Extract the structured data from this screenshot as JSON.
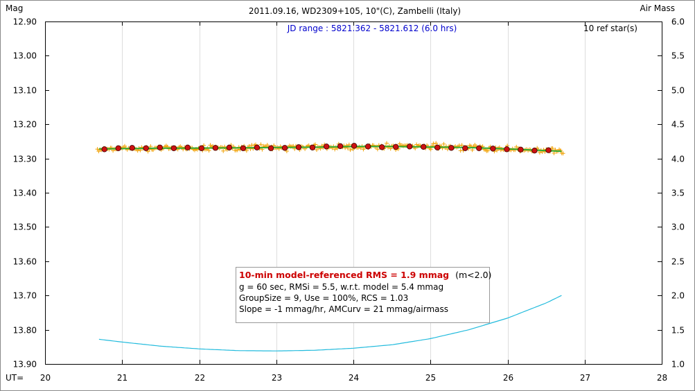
{
  "chart_data": {
    "type": "scatter",
    "title": "2011.09.16, WD2309+105, 10\"(C), Zambelli (Italy)",
    "ylabel_left": "Mag",
    "ylabel_right": "Air Mass",
    "xlabel": "UT=",
    "jd_range": "JD range : 5821.362 - 5821.612 (6.0 hrs)",
    "ref_stars": "10 ref star(s)",
    "xlim": [
      20,
      28
    ],
    "ylim_left": [
      12.9,
      13.9
    ],
    "ylim_right": [
      1.0,
      6.0
    ],
    "x_ticks": [
      "20",
      "21",
      "22",
      "23",
      "24",
      "25",
      "26",
      "27",
      "28"
    ],
    "y_ticks_left": [
      "12.90",
      "13.00",
      "13.10",
      "13.20",
      "13.30",
      "13.40",
      "13.50",
      "13.60",
      "13.70",
      "13.80",
      "13.90"
    ],
    "y_ticks_right": [
      "6.0",
      "5.5",
      "5.0",
      "4.5",
      "4.0",
      "3.5",
      "3.0",
      "2.5",
      "2.0",
      "1.5",
      "1.0"
    ],
    "grid": "vertical",
    "series": [
      {
        "type": "binned_points",
        "marker": "red-circle",
        "x": [
          20.77,
          20.95,
          21.13,
          21.31,
          21.49,
          21.67,
          21.85,
          22.03,
          22.21,
          22.39,
          22.57,
          22.75,
          22.93,
          23.11,
          23.29,
          23.47,
          23.65,
          23.83,
          24.01,
          24.19,
          24.37,
          24.55,
          24.73,
          24.91,
          25.09,
          25.27,
          25.45,
          25.63,
          25.81,
          25.99,
          26.17,
          26.35,
          26.53
        ],
        "y": [
          13.273,
          13.27,
          13.269,
          13.27,
          13.268,
          13.27,
          13.268,
          13.27,
          13.269,
          13.268,
          13.27,
          13.268,
          13.27,
          13.269,
          13.267,
          13.268,
          13.265,
          13.264,
          13.263,
          13.265,
          13.267,
          13.266,
          13.265,
          13.266,
          13.268,
          13.269,
          13.27,
          13.27,
          13.271,
          13.273,
          13.274,
          13.277,
          13.276
        ]
      },
      {
        "type": "model_fit",
        "color": "#33aa33",
        "x": [
          20.7,
          21.5,
          22.5,
          23.5,
          24.0,
          24.5,
          25.5,
          26.0,
          26.7
        ],
        "y": [
          13.272,
          13.27,
          13.269,
          13.267,
          13.265,
          13.265,
          13.268,
          13.272,
          13.279
        ]
      },
      {
        "type": "air_mass",
        "axis": "right",
        "color": "#22bbdd",
        "x": [
          20.7,
          21.0,
          21.5,
          22.0,
          22.5,
          23.0,
          23.5,
          24.0,
          24.5,
          25.0,
          25.5,
          26.0,
          26.5,
          26.7
        ],
        "y": [
          1.36,
          1.32,
          1.26,
          1.22,
          1.195,
          1.19,
          1.2,
          1.23,
          1.28,
          1.37,
          1.5,
          1.67,
          1.89,
          2.0
        ]
      }
    ],
    "raw_points": {
      "marker": "orange-plus",
      "color": "#f0a000",
      "x_start": 20.68,
      "x_end": 26.72,
      "count": 360,
      "scatter_mag": 0.005
    },
    "annotation": {
      "headline": "10-min model-referenced RMS = 1.9 mmag",
      "headline_suffix": "(m<2.0)",
      "line2": "g = 60 sec, RMSi = 5.5, w.r.t. model = 5.4 mmag",
      "line3": "GroupSize = 9, Use = 100%, RCS = 1.03",
      "line4": "Slope = -1 mmag/hr, AMCurv = 21 mmag/airmass"
    },
    "colors": {
      "headline": "#cc0000",
      "jd_range": "#0000cc",
      "point_fill": "#cc1111",
      "point_stroke": "#330000"
    }
  }
}
